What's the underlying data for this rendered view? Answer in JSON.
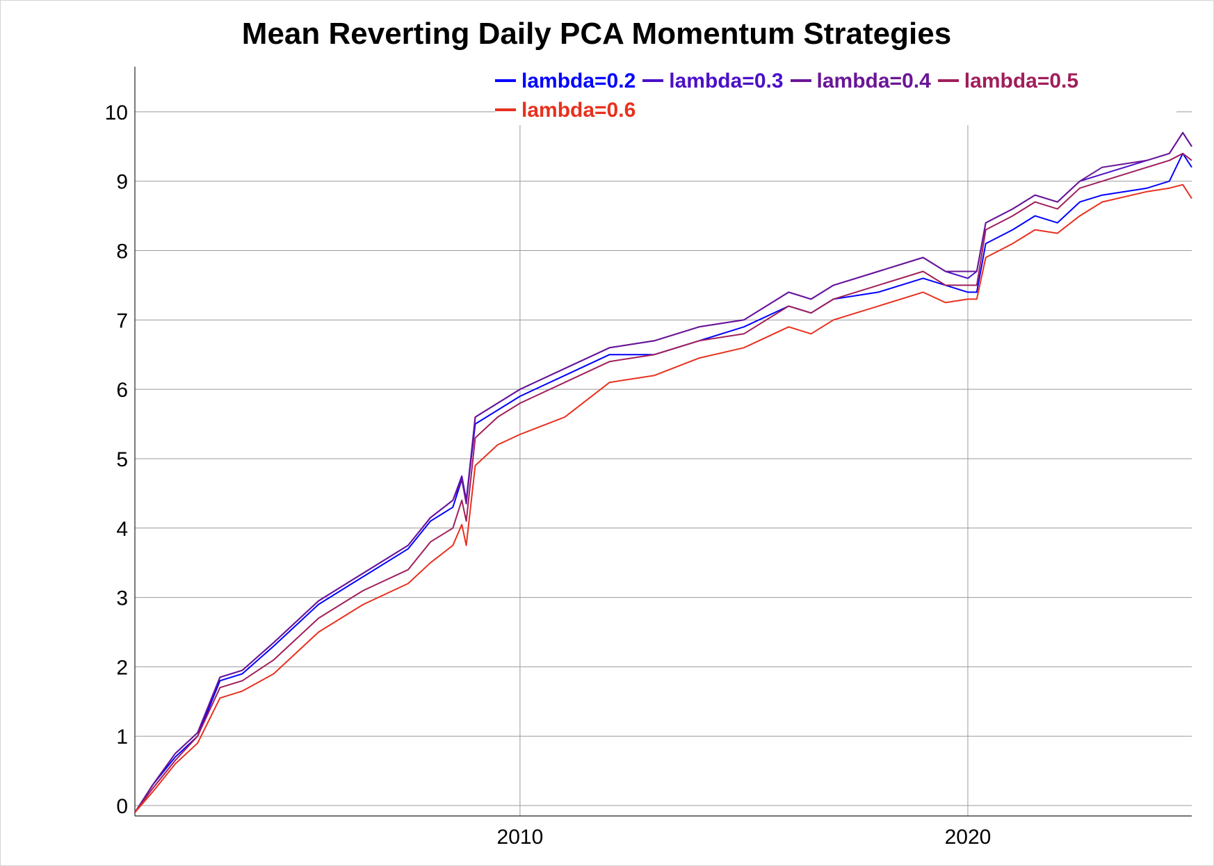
{
  "chart_data": {
    "type": "line",
    "title": "Mean Reverting Daily PCA Momentum Strategies",
    "xlabel": "",
    "ylabel": "",
    "xlim": [
      2001.4,
      2025.0
    ],
    "ylim": [
      -0.15,
      10.65
    ],
    "x_ticks": [
      2010,
      2020
    ],
    "y_ticks": [
      0,
      1,
      2,
      3,
      4,
      5,
      6,
      7,
      8,
      9,
      10
    ],
    "grid": true,
    "legend_position": "top-right",
    "x": [
      2001.4,
      2001.8,
      2002.3,
      2002.8,
      2003.3,
      2003.8,
      2004.5,
      2005.5,
      2006.5,
      2007.5,
      2008.0,
      2008.5,
      2008.7,
      2008.8,
      2009.0,
      2009.5,
      2010.0,
      2011.0,
      2012.0,
      2013.0,
      2014.0,
      2015.0,
      2016.0,
      2016.5,
      2017.0,
      2018.0,
      2019.0,
      2019.5,
      2020.0,
      2020.2,
      2020.4,
      2021.0,
      2021.5,
      2022.0,
      2022.5,
      2023.0,
      2024.0,
      2024.5,
      2024.8,
      2025.0
    ],
    "series": [
      {
        "name": "lambda=0.2",
        "color": "#0000ff",
        "values": [
          -0.1,
          0.3,
          0.7,
          1.0,
          1.8,
          1.9,
          2.3,
          2.9,
          3.3,
          3.7,
          4.1,
          4.3,
          4.7,
          4.4,
          5.5,
          5.7,
          5.9,
          6.2,
          6.5,
          6.5,
          6.7,
          6.9,
          7.2,
          7.1,
          7.3,
          7.4,
          7.6,
          7.5,
          7.4,
          7.4,
          8.1,
          8.3,
          8.5,
          8.4,
          8.7,
          8.8,
          8.9,
          9.0,
          9.4,
          9.2
        ]
      },
      {
        "name": "lambda=0.3",
        "color": "#4b0fc8",
        "values": [
          -0.1,
          0.3,
          0.75,
          1.05,
          1.85,
          1.95,
          2.35,
          2.95,
          3.35,
          3.75,
          4.15,
          4.4,
          4.75,
          4.4,
          5.6,
          5.8,
          6.0,
          6.3,
          6.6,
          6.7,
          6.9,
          7.0,
          7.4,
          7.3,
          7.5,
          7.7,
          7.9,
          7.7,
          7.6,
          7.7,
          8.4,
          8.6,
          8.8,
          8.7,
          9.0,
          9.1,
          9.3,
          9.4,
          9.7,
          9.5
        ]
      },
      {
        "name": "lambda=0.4",
        "color": "#6a1696",
        "values": [
          -0.1,
          0.3,
          0.75,
          1.05,
          1.85,
          1.95,
          2.35,
          2.95,
          3.35,
          3.75,
          4.15,
          4.4,
          4.7,
          4.35,
          5.6,
          5.8,
          6.0,
          6.3,
          6.6,
          6.7,
          6.9,
          7.0,
          7.4,
          7.3,
          7.5,
          7.7,
          7.9,
          7.7,
          7.7,
          7.7,
          8.4,
          8.6,
          8.8,
          8.7,
          9.0,
          9.2,
          9.3,
          9.4,
          9.7,
          9.5
        ]
      },
      {
        "name": "lambda=0.5",
        "color": "#a01e5a",
        "values": [
          -0.1,
          0.25,
          0.65,
          1.0,
          1.7,
          1.8,
          2.1,
          2.7,
          3.1,
          3.4,
          3.8,
          4.0,
          4.4,
          4.1,
          5.3,
          5.6,
          5.8,
          6.1,
          6.4,
          6.5,
          6.7,
          6.8,
          7.2,
          7.1,
          7.3,
          7.5,
          7.7,
          7.5,
          7.5,
          7.5,
          8.3,
          8.5,
          8.7,
          8.6,
          8.9,
          9.0,
          9.2,
          9.3,
          9.4,
          9.3
        ]
      },
      {
        "name": "lambda=0.6",
        "color": "#e8301e",
        "values": [
          -0.1,
          0.2,
          0.6,
          0.9,
          1.55,
          1.65,
          1.9,
          2.5,
          2.9,
          3.2,
          3.5,
          3.75,
          4.05,
          3.75,
          4.9,
          5.2,
          5.35,
          5.6,
          6.1,
          6.2,
          6.45,
          6.6,
          6.9,
          6.8,
          7.0,
          7.2,
          7.4,
          7.25,
          7.3,
          7.3,
          7.9,
          8.1,
          8.3,
          8.25,
          8.5,
          8.7,
          8.85,
          8.9,
          8.95,
          8.75
        ]
      }
    ]
  }
}
